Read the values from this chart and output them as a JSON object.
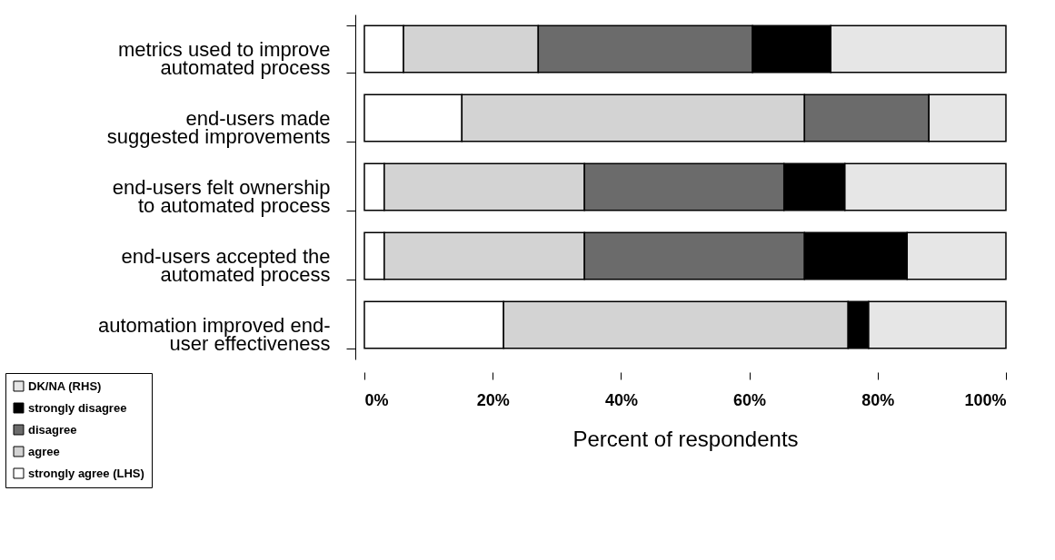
{
  "chart_data": {
    "type": "bar",
    "orientation": "horizontal",
    "stacked": true,
    "categories": [
      "metrics used to improve\nautomated process",
      "end-users made\nsuggested improvements",
      "end-users felt ownership\nto automated process",
      "end-users accepted the\nautomated process",
      "automation improved end-\nuser effectiveness"
    ],
    "series": [
      {
        "name": "strongly agree (LHS)",
        "color": "#ffffff",
        "values": [
          6.1,
          15.2,
          3.1,
          3.1,
          21.7
        ]
      },
      {
        "name": "agree",
        "color": "#d3d3d3",
        "values": [
          21.0,
          53.4,
          31.2,
          31.2,
          53.7
        ]
      },
      {
        "name": "disagree",
        "color": "#6b6b6b",
        "values": [
          33.4,
          19.4,
          31.1,
          34.3,
          null
        ]
      },
      {
        "name": "strongly disagree",
        "color": "#000000",
        "values": [
          12.2,
          null,
          9.5,
          16.0,
          3.2
        ]
      },
      {
        "name": "DK/NA (RHS)",
        "color": "#e6e6e6",
        "values": [
          27.3,
          12.0,
          25.1,
          15.4,
          21.4
        ]
      }
    ],
    "xlim": [
      0,
      100
    ],
    "xticks": [
      {
        "value": 0,
        "label": "0%"
      },
      {
        "value": 20,
        "label": "20%"
      },
      {
        "value": 40,
        "label": "40%"
      },
      {
        "value": 60,
        "label": "60%"
      },
      {
        "value": 80,
        "label": "80%"
      },
      {
        "value": 100,
        "label": "100%"
      }
    ],
    "xlabel": "Percent of respondents",
    "grid": false,
    "legend": "bottom left"
  }
}
